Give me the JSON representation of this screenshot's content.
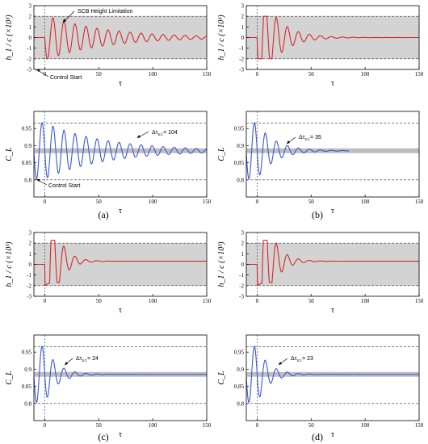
{
  "colors": {
    "control_line": "#d62728",
    "lift_line": "#3a57d6",
    "band": "#d3d3d3",
    "lift_band": "#bdbdbd"
  },
  "labels": {
    "x_axis": "τ",
    "h_axis_a": "h_1 / c (×10³)",
    "h_axis_b": "h_1 / c (×10³)",
    "h_axis_c": "h_1 / c (×10³)",
    "h_axis_d": "h_1 / c (×10³)",
    "cl_axis": "C_L",
    "scb_limit": "SCB Height Limitation",
    "control_start": "Control Start",
    "panel_a": "(a)",
    "panel_b": "(b)",
    "panel_c": "(c)",
    "panel_d": "(d)",
    "delta_a": "Δτ",
    "delta_a_sub": "s.t.",
    "delta_a_val": "= 104",
    "delta_b_val": "= 35",
    "delta_c_val": "= 24",
    "delta_d_val": "= 23"
  },
  "chart_data": [
    {
      "id": "a-top",
      "type": "line",
      "xlabel": "τ",
      "ylabel": "h_1 / c (×10³)",
      "xlim": [
        -10,
        150
      ],
      "ylim": [
        -3,
        3
      ],
      "xticks": [
        0,
        50,
        100,
        150
      ],
      "yticks": [
        -3,
        -2,
        -1,
        0,
        1,
        2,
        3
      ],
      "band": [
        -2,
        2
      ],
      "limit_lines": [
        2,
        -2
      ],
      "series": [
        {
          "decay": 0.0185,
          "period": 10.2,
          "amp": 2.15,
          "sat": 2,
          "x_start": 0,
          "x_end": 150
        }
      ]
    },
    {
      "id": "a-bottom",
      "type": "line",
      "xlabel": "τ",
      "ylabel": "C_L",
      "xlim": [
        -10,
        150
      ],
      "ylim": [
        0.75,
        1.0
      ],
      "xticks": [
        0,
        50,
        100,
        150
      ],
      "yticks": [
        0.8,
        0.85,
        0.9,
        0.95
      ],
      "band": [
        0.878,
        0.892
      ],
      "limit_lines": [
        0.966,
        0.8
      ],
      "series": [
        {
          "mean": 0.885,
          "amp": 0.082,
          "decay": 0.0175,
          "period": 10.2,
          "x_start": -10,
          "x_end": 150
        }
      ]
    },
    {
      "id": "b-top",
      "type": "line",
      "xlabel": "τ",
      "ylabel": "h_1 / c (×10³)",
      "xlim": [
        -10,
        150
      ],
      "ylim": [
        -3,
        3
      ],
      "xticks": [
        0,
        50,
        100,
        150
      ],
      "yticks": [
        -3,
        -2,
        -1,
        0,
        1,
        2,
        3
      ],
      "band": [
        -2,
        2
      ],
      "limit_lines": [
        2,
        -2
      ],
      "series": [
        {
          "decay": 0.06,
          "period": 10.2,
          "amp": 5.5,
          "sat": 2,
          "x_start": 0,
          "x_end": 150
        }
      ]
    },
    {
      "id": "b-bottom",
      "type": "line",
      "xlabel": "τ",
      "ylabel": "C_L",
      "xlim": [
        -10,
        150
      ],
      "ylim": [
        0.75,
        1.0
      ],
      "xticks": [
        0,
        50,
        100,
        150
      ],
      "yticks": [
        0.8,
        0.85,
        0.9,
        0.95
      ],
      "band": [
        0.878,
        0.892
      ],
      "limit_lines": [
        0.966,
        0.8
      ],
      "series": [
        {
          "mean": 0.885,
          "amp": 0.082,
          "decay": 0.06,
          "period": 10.2,
          "x_start": -10,
          "x_end": 85
        }
      ]
    },
    {
      "id": "c-top",
      "type": "line",
      "xlabel": "τ",
      "ylabel": "h_1 / c (×10³)",
      "xlim": [
        -10,
        150
      ],
      "ylim": [
        -3,
        3
      ],
      "xticks": [
        0,
        50,
        100,
        150
      ],
      "yticks": [
        -3,
        -2,
        -1,
        0,
        1,
        2,
        3
      ],
      "band": [
        -2,
        2
      ],
      "limit_lines": [
        2,
        -2
      ],
      "series": [
        {
          "decay": 0.11,
          "period": 10.2,
          "amp": 10,
          "sat": 2,
          "offset": 0.3,
          "x_start": 0,
          "x_end": 150
        }
      ]
    },
    {
      "id": "c-bottom",
      "type": "line",
      "xlabel": "τ",
      "ylabel": "C_L",
      "xlim": [
        -10,
        150
      ],
      "ylim": [
        0.75,
        1.0
      ],
      "xticks": [
        0,
        50,
        100,
        150
      ],
      "yticks": [
        0.8,
        0.85,
        0.9,
        0.95
      ],
      "band": [
        0.878,
        0.892
      ],
      "limit_lines": [
        0.966,
        0.8
      ],
      "series": [
        {
          "mean": 0.885,
          "amp": 0.082,
          "decay": 0.085,
          "period": 10.2,
          "x_start": -10,
          "x_end": 150
        }
      ]
    },
    {
      "id": "d-top",
      "type": "line",
      "xlabel": "τ",
      "ylabel": "h_1 / c (×10³)",
      "xlim": [
        -10,
        150
      ],
      "ylim": [
        -3,
        3
      ],
      "xticks": [
        0,
        50,
        100,
        150
      ],
      "yticks": [
        -3,
        -2,
        -1,
        0,
        1,
        2,
        3
      ],
      "band": [
        -2,
        2
      ],
      "limit_lines": [
        2,
        -2
      ],
      "series": [
        {
          "decay": 0.1,
          "period": 10.2,
          "amp": 10,
          "sat": 2,
          "offset": 0.3,
          "x_start": 0,
          "x_end": 150
        }
      ]
    },
    {
      "id": "d-bottom",
      "type": "line",
      "xlabel": "τ",
      "ylabel": "C_L",
      "xlim": [
        -10,
        150
      ],
      "ylim": [
        0.75,
        1.0
      ],
      "xticks": [
        0,
        50,
        100,
        150
      ],
      "yticks": [
        0.8,
        0.85,
        0.9,
        0.95
      ],
      "band": [
        0.878,
        0.892
      ],
      "limit_lines": [
        0.966,
        0.8
      ],
      "series": [
        {
          "mean": 0.885,
          "amp": 0.082,
          "decay": 0.09,
          "period": 10.2,
          "x_start": -10,
          "x_end": 150
        }
      ]
    }
  ]
}
